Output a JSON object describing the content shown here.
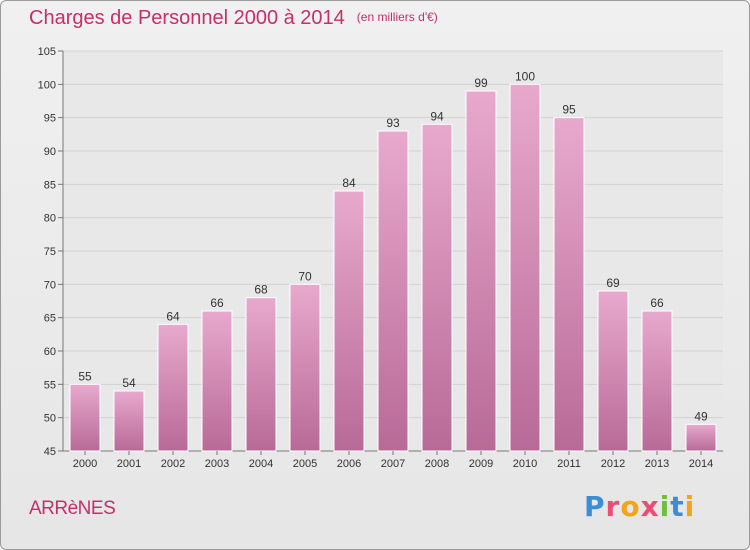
{
  "title": "Charges de Personnel 2000 à 2014",
  "unit": "(en milliers d'€)",
  "location": "ARRèNES",
  "logo": {
    "text": "Proxiti",
    "letters": [
      {
        "ch": "P",
        "color": "#3a8ed8"
      },
      {
        "ch": "r",
        "color": "#e94e77"
      },
      {
        "ch": "o",
        "color": "#f2a51a"
      },
      {
        "ch": "x",
        "color": "#e94e77"
      },
      {
        "ch": "i",
        "color": "#6fbf3b"
      },
      {
        "ch": "t",
        "color": "#3a8ed8"
      },
      {
        "ch": "i",
        "color": "#f2a51a"
      }
    ]
  },
  "colors": {
    "bar_top": "#e8a9cd",
    "bar_bottom": "#b86a97",
    "title": "#c4306c",
    "grid": "#d2d2d2",
    "axis_text": "#333333"
  },
  "chart_data": {
    "type": "bar",
    "categories": [
      "2000",
      "2001",
      "2002",
      "2003",
      "2004",
      "2005",
      "2006",
      "2007",
      "2008",
      "2009",
      "2010",
      "2011",
      "2012",
      "2013",
      "2014"
    ],
    "values": [
      55,
      54,
      64,
      66,
      68,
      70,
      84,
      93,
      94,
      99,
      100,
      95,
      69,
      66,
      49
    ],
    "title": "Charges de Personnel 2000 à 2014",
    "xlabel": "",
    "ylabel": "",
    "ylim": [
      45,
      105
    ],
    "yticks": [
      45,
      50,
      55,
      60,
      65,
      70,
      75,
      80,
      85,
      90,
      95,
      100,
      105
    ],
    "grid": true
  }
}
